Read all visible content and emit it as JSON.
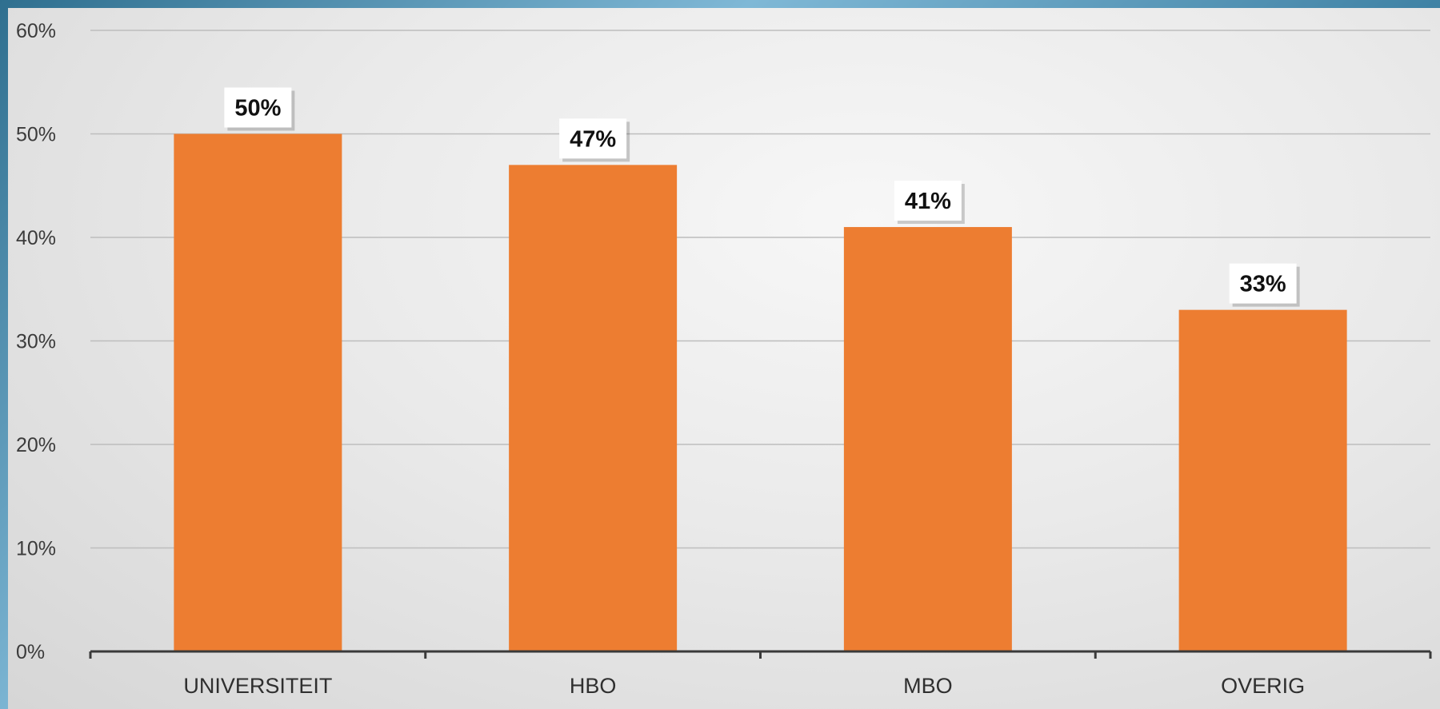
{
  "chart_data": {
    "type": "bar",
    "categories": [
      "UNIVERSITEIT",
      "HBO",
      "MBO",
      "OVERIG"
    ],
    "values": [
      50,
      47,
      41,
      33
    ],
    "data_labels": [
      "50%",
      "47%",
      "41%",
      "33%"
    ],
    "ylim": [
      0,
      60
    ],
    "yticks": [
      "0%",
      "10%",
      "20%",
      "30%",
      "40%",
      "50%",
      "60%"
    ],
    "ytick_values": [
      0,
      10,
      20,
      30,
      40,
      50,
      60
    ],
    "grid": true,
    "title": "",
    "xlabel": "",
    "ylabel": "",
    "colors": {
      "bar": "#ED7D31",
      "grid": "#bdbdbd",
      "axis": "#3a3a3a",
      "label_box": "#ffffff"
    }
  }
}
